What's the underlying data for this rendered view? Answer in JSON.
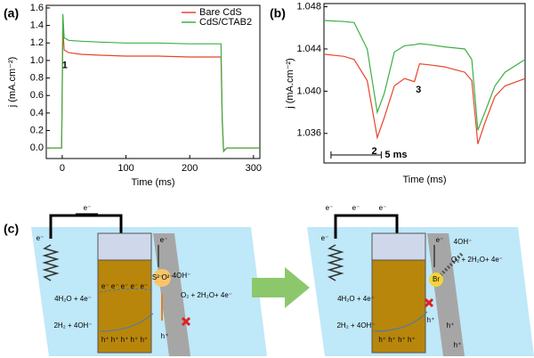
{
  "chart_data": [
    {
      "type": "line",
      "panel": "(a)",
      "x_label": "Time (ms)",
      "y_label": "j (mA.cm⁻²)",
      "x": [
        -25,
        -1,
        0,
        1,
        3,
        10,
        30,
        60,
        100,
        150,
        200,
        249,
        251,
        253,
        258,
        270,
        310
      ],
      "series": [
        {
          "name": "Bare CdS",
          "color": "#e8452c",
          "values": [
            0,
            0,
            0.6,
            1.37,
            1.12,
            1.09,
            1.07,
            1.06,
            1.05,
            1.05,
            1.04,
            1.04,
            0.3,
            -0.03,
            0,
            0,
            0
          ]
        },
        {
          "name": "CdS/CTAB2",
          "color": "#3cb043",
          "values": [
            0,
            0,
            0.7,
            1.53,
            1.26,
            1.23,
            1.22,
            1.21,
            1.2,
            1.2,
            1.19,
            1.19,
            0.35,
            -0.04,
            0,
            0,
            0
          ]
        }
      ],
      "xlim": [
        -25,
        310
      ],
      "xticks": [
        0,
        100,
        200,
        300
      ],
      "ylim": [
        -0.12,
        1.63
      ],
      "yticks": [
        {
          "value": 0,
          "label": "0.0"
        },
        0.2,
        0.4,
        0.6,
        0.8,
        {
          "value": 1,
          "label": "1.0"
        },
        1.2,
        1.4,
        1.6
      ],
      "legend": "upper right",
      "annotations": [
        "1"
      ]
    },
    {
      "type": "line",
      "panel": "(b)",
      "x_label": "Time (ms)",
      "y_label": "j (mA.cm⁻²)",
      "x": [
        0,
        2,
        3,
        4.3,
        5.3,
        6,
        7,
        8,
        9,
        9.5,
        10.5,
        12,
        14,
        14.7,
        15.3,
        16,
        17,
        18,
        20
      ],
      "series": [
        {
          "name": "Bare CdS",
          "color": "#e8452c",
          "values": [
            1.0435,
            1.0433,
            1.043,
            1.041,
            1.0356,
            1.0375,
            1.0405,
            1.0412,
            1.0409,
            1.0426,
            1.0425,
            1.0423,
            1.0418,
            1.041,
            1.035,
            1.037,
            1.0395,
            1.0405,
            1.0412
          ]
        },
        {
          "name": "CdS/CTAB2",
          "color": "#3cb043",
          "values": [
            1.0467,
            1.0466,
            1.0465,
            1.044,
            1.038,
            1.0398,
            1.0437,
            1.0443,
            1.0444,
            1.0445,
            1.0444,
            1.0442,
            1.044,
            1.043,
            1.0363,
            1.038,
            1.0405,
            1.0418,
            1.043
          ]
        }
      ],
      "xlim": [
        0,
        20
      ],
      "ylim": [
        1.0332,
        1.0483
      ],
      "yticks": [
        1.036,
        {
          "value": 1.04,
          "label": "1.040"
        },
        1.044,
        1.048
      ],
      "scale_bar": {
        "length": 5,
        "label": "5 ms"
      },
      "annotations": [
        "2",
        "3"
      ]
    }
  ],
  "diagram": {
    "panel": "(c)",
    "left": {
      "texts": [
        "e⁻",
        "e⁻",
        "e⁻",
        "e⁻ e⁻ e⁻ e⁻ e⁻",
        "4H₂O + 4e⁻",
        "2H₂ + 4OH⁻",
        "4OH⁻",
        "O₂ + 2H₂O+ 4e⁻",
        "h⁺ h⁺ h⁺ h⁺ h⁺",
        "h⁺",
        "S²⁻",
        "O²⁻"
      ]
    },
    "right": {
      "texts": [
        "e⁻",
        "e⁻",
        "e⁻",
        "e⁻",
        "e⁻",
        "4H₂O + 4e⁻",
        "2H₂ + 4OH⁻",
        "4OH⁻",
        "O₂ + 2H₂O+ 4e⁻",
        "h⁺ h⁺ h⁺ h⁺",
        "h⁺",
        "h⁺",
        "h⁺",
        "Br"
      ]
    }
  }
}
